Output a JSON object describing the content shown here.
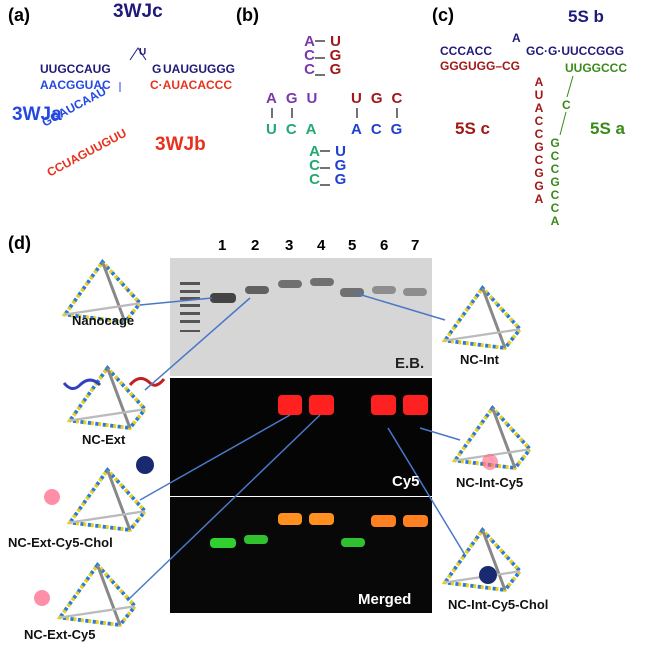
{
  "panel_a": {
    "label": "(a)",
    "junction_labels": [
      "3WJc",
      "3WJa",
      "3WJb"
    ],
    "strands": {
      "c_top_left": "UUGCCAUG",
      "c_loop_1": "U",
      "c_loop_2": "G",
      "c_top_right": "UAUGUGGG",
      "a_bottom_left": "AACGGUAC",
      "b_right": "C·AUACACCC",
      "a_diag": "GGAUCAAU",
      "b_diag": "CCUAGUUGUU"
    }
  },
  "panel_b": {
    "label": "(b)",
    "top_left": "ACC",
    "top_right": "UGG",
    "mid_left_top": "AGU",
    "mid_left_bottom": "UCA",
    "mid_right_top": "UGC",
    "mid_right_bottom": "ACG",
    "bottom_left": "ACC",
    "bottom_right": "UGG"
  },
  "panel_c": {
    "label": "(c)",
    "domain_labels": [
      "5S b",
      "5S c",
      "5S a"
    ],
    "strands": {
      "b_left": "CCCACC",
      "b_loop": "A",
      "b_right": "GC·G·UUCCGGG",
      "c_left": "GGGUGG–CG",
      "a_right": "UUGGCCC",
      "c_vertical": "AUACCGCGGA",
      "a_link": "C",
      "a_vertical": "GCCGCCA"
    }
  },
  "panel_d": {
    "label": "(d)",
    "lanes": [
      "1",
      "2",
      "3",
      "4",
      "5",
      "6",
      "7"
    ],
    "gel_labels": [
      "E.B.",
      "Cy5",
      "Merged"
    ],
    "constructs": [
      "Nanocage",
      "NC-Ext",
      "NC-Ext-Cy5-Chol",
      "NC-Ext-Cy5",
      "NC-Int",
      "NC-Int-Cy5",
      "NC-Int-Cy5-Chol"
    ]
  }
}
